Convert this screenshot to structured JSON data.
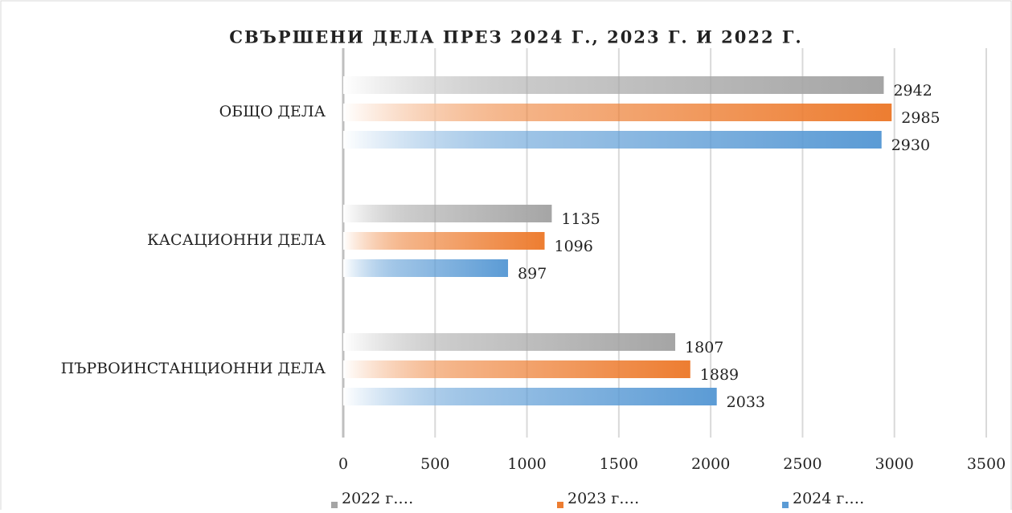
{
  "chart_data": {
    "type": "hbar",
    "title": "СВЪРШЕНИ ДЕЛА ПРЕЗ 2024 Г., 2023 Г. И 2022 Г.",
    "categories": [
      "ОБЩО ДЕЛА",
      "КАСАЦИОННИ ДЕЛА",
      "ПЪРВОИНСТАНЦИОННИ ДЕЛА"
    ],
    "series": [
      {
        "name": "2022 г.…",
        "color": "#a5a5a5",
        "values": [
          2942,
          1135,
          1807
        ]
      },
      {
        "name": "2023 г.…",
        "color": "#ed7d31",
        "values": [
          2985,
          1096,
          1889
        ]
      },
      {
        "name": "2024 г.…",
        "color": "#5b9bd5",
        "values": [
          2930,
          897,
          2033
        ]
      }
    ],
    "xlim": [
      0,
      3500
    ],
    "xticks": [
      0,
      500,
      1000,
      1500,
      2000,
      2500,
      3000,
      3500
    ],
    "grid": true,
    "legend": "bottom"
  }
}
